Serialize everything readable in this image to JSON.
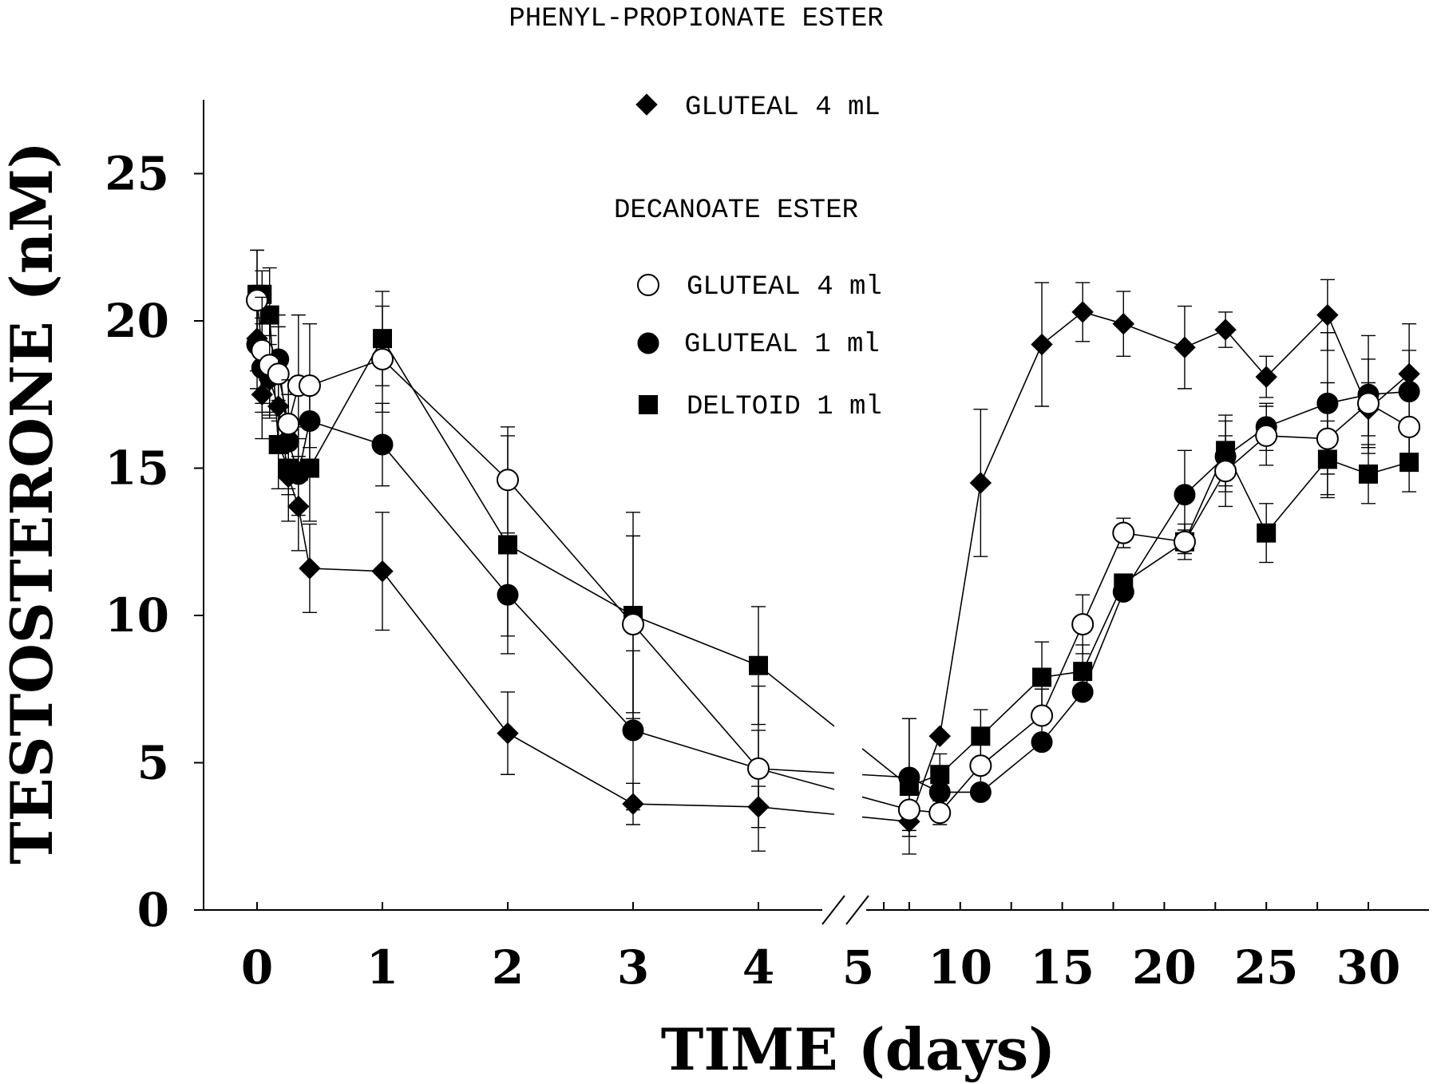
{
  "chart_data": {
    "type": "line",
    "title": "PHENYL-PROPIONATE ESTER",
    "legend_groups": [
      {
        "heading": "PHENYL-PROPIONATE ESTER",
        "entries": [
          "GLUTEAL 4 mL"
        ]
      },
      {
        "heading": "DECANOATE ESTER",
        "entries": [
          "GLUTEAL 4 ml",
          "GLUTEAL 1 ml",
          "DELTOID 1 ml"
        ]
      }
    ],
    "xlabel": "TIME (days)",
    "ylabel": "TESTOSTERONE (nM)",
    "ylim": [
      0,
      27
    ],
    "yticks": [
      0,
      5,
      10,
      15,
      20,
      25
    ],
    "x_segments": [
      {
        "range": [
          0,
          5
        ],
        "tick_labels": [
          "0",
          "1",
          "2",
          "3",
          "4",
          "5"
        ]
      },
      {
        "range": [
          5,
          30
        ],
        "tick_labels": [
          "10",
          "15",
          "20",
          "25",
          "30"
        ]
      }
    ],
    "axis_break": "between day 4 and day 5",
    "series": [
      {
        "name": "GLUTEAL 4 mL",
        "group": "PHENYL-PROPIONATE ESTER",
        "marker": "filled-diamond",
        "x": [
          0,
          0.04,
          0.1,
          0.17,
          0.25,
          0.33,
          0.42,
          1,
          2,
          3,
          4,
          7.5,
          9,
          11,
          14,
          16,
          18,
          21,
          23,
          25,
          28,
          30,
          32
        ],
        "y": [
          19.4,
          17.5,
          18.0,
          17.1,
          14.7,
          13.7,
          11.6,
          11.5,
          6.0,
          3.6,
          3.5,
          3.0,
          5.9,
          14.5,
          19.2,
          20.3,
          19.9,
          19.1,
          19.7,
          18.1,
          20.2,
          17.0,
          18.2
        ],
        "error": [
          1.1,
          1.5,
          1.2,
          1.5,
          1.5,
          1.5,
          1.5,
          2.0,
          1.4,
          0.7,
          0.7,
          0.5,
          0,
          2.5,
          2.1,
          1.0,
          1.1,
          1.4,
          0.6,
          0.7,
          1.2,
          0.9,
          0.8
        ]
      },
      {
        "name": "GLUTEAL 4 ml",
        "group": "DECANOATE ESTER",
        "marker": "open-circle",
        "x": [
          0,
          0.04,
          0.1,
          0.17,
          0.25,
          0.33,
          0.42,
          1,
          2,
          3,
          4,
          7.5,
          9,
          11,
          14,
          16,
          18,
          21,
          23,
          25,
          28,
          30,
          32
        ],
        "y": [
          20.7,
          19.0,
          18.5,
          18.2,
          16.5,
          17.8,
          17.8,
          18.7,
          14.6,
          9.7,
          4.8,
          3.4,
          3.3,
          4.9,
          6.6,
          9.7,
          12.8,
          12.5,
          14.9,
          16.1,
          16.0,
          17.2,
          16.4
        ],
        "error": [
          1.7,
          1.8,
          1.6,
          1.6,
          1.5,
          2.4,
          2.1,
          1.8,
          1.8,
          3.0,
          1.3,
          0.7,
          0.4,
          0.7,
          0.9,
          1.0,
          0.5,
          0.6,
          1.2,
          1.0,
          1.9,
          1.5,
          1.4
        ]
      },
      {
        "name": "GLUTEAL 1 ml",
        "group": "DECANOATE ESTER",
        "marker": "filled-circle",
        "x": [
          0,
          0.04,
          0.1,
          0.17,
          0.25,
          0.33,
          0.42,
          1,
          2,
          3,
          4,
          7.5,
          9,
          11,
          14,
          16,
          18,
          21,
          23,
          25,
          28,
          30,
          32
        ],
        "y": [
          19.2,
          18.4,
          18.1,
          18.7,
          15.9,
          14.8,
          16.6,
          15.8,
          10.7,
          6.1,
          4.8,
          4.5,
          4.0,
          4.0,
          5.7,
          7.4,
          10.8,
          14.1,
          15.4,
          16.4,
          17.2,
          17.5,
          17.6
        ],
        "error": [
          1.5,
          1.5,
          1.4,
          1.5,
          1.6,
          1.2,
          1.4,
          1.4,
          1.4,
          2.7,
          2.8,
          2.0,
          0.5,
          0,
          0,
          0,
          0,
          1.5,
          1.2,
          0.8,
          2.4,
          2.0,
          2.3
        ]
      },
      {
        "name": "DELTOID 1 ml",
        "group": "DECANOATE ESTER",
        "marker": "filled-square",
        "x": [
          0,
          0.04,
          0.1,
          0.17,
          0.25,
          0.33,
          0.42,
          1,
          2,
          3,
          4,
          7.5,
          9,
          11,
          14,
          16,
          18,
          21,
          23,
          25,
          28,
          30,
          32
        ],
        "y": [
          20.9,
          20.9,
          20.2,
          15.8,
          15.0,
          14.9,
          15.0,
          19.4,
          12.4,
          10.0,
          8.3,
          4.2,
          4.6,
          5.9,
          7.9,
          8.1,
          11.1,
          12.5,
          15.6,
          12.8,
          15.3,
          14.8,
          15.2
        ],
        "error": [
          1.5,
          0.8,
          1.6,
          1.5,
          0.9,
          1.5,
          1.8,
          1.6,
          3.7,
          3.5,
          2.0,
          2.3,
          0.7,
          0.9,
          1.2,
          0.9,
          0,
          0.4,
          1.2,
          1.0,
          1.3,
          1.0,
          1.0
        ]
      }
    ]
  }
}
